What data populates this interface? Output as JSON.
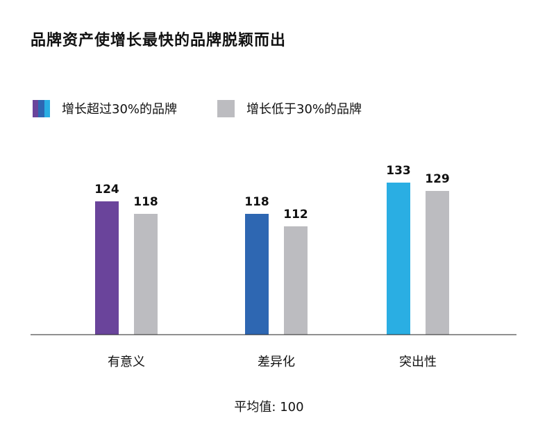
{
  "chart_data": {
    "type": "bar",
    "title": "品牌资产使增长最快的品牌脱颖而出",
    "categories": [
      "有意义",
      "差异化",
      "突出性"
    ],
    "series": [
      {
        "name": "增长超过30%的品牌",
        "values": [
          124,
          118,
          133
        ],
        "colors": [
          "#6a449b",
          "#2e67b2",
          "#2aaee3"
        ]
      },
      {
        "name": "增长低于30%的品牌",
        "values": [
          118,
          112,
          129
        ],
        "colors": [
          "#bcbcc0",
          "#bcbcc0",
          "#bcbcc0"
        ]
      }
    ],
    "ylim": [
      60,
      140
    ],
    "grid": false,
    "legend": "top-left",
    "footnote": "平均值: 100"
  }
}
